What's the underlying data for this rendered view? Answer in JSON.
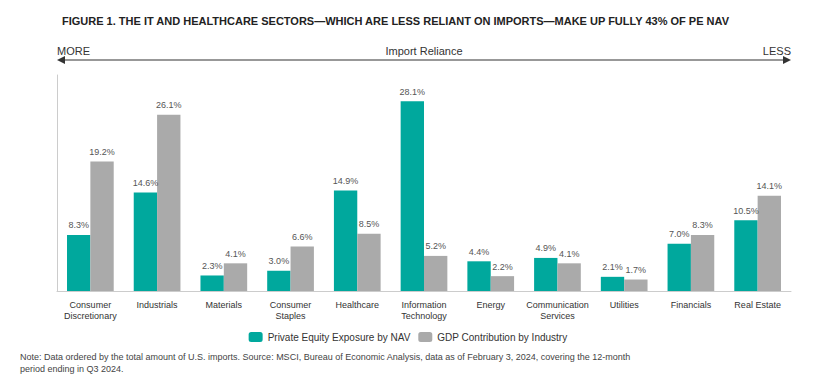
{
  "chart_data": {
    "type": "bar",
    "title": "FIGURE 1. THE IT AND HEALTHCARE SECTORS—WHICH ARE LESS RELIANT ON IMPORTS—MAKE UP FULLY 43% OF PE NAV",
    "categories": [
      "Consumer\nDiscretionary",
      "Industrials",
      "Materials",
      "Consumer\nStaples",
      "Healthcare",
      "Information\nTechnology",
      "Energy",
      "Communication\nServices",
      "Utilities",
      "Financials",
      "Real Estate"
    ],
    "series": [
      {
        "name": "Private Equity Exposure by NAV",
        "color": "#00A89D",
        "values": [
          8.3,
          14.6,
          2.3,
          3.0,
          14.9,
          28.1,
          4.4,
          4.9,
          2.1,
          7.0,
          10.5
        ],
        "value_labels": [
          "8.3%",
          "14.6%",
          "2.3%",
          "3.0%",
          "14.9%",
          "28.1%",
          "4.4%",
          "4.9%",
          "2.1%",
          "7.0%",
          "10.5%"
        ]
      },
      {
        "name": "GDP Contribution by Industry",
        "color": "#AAAAAA",
        "values": [
          19.2,
          26.1,
          4.1,
          6.6,
          8.5,
          5.2,
          2.2,
          4.1,
          1.7,
          8.3,
          14.1
        ],
        "value_labels": [
          "19.2%",
          "26.1%",
          "4.1%",
          "6.6%",
          "8.5%",
          "5.2%",
          "2.2%",
          "4.1%",
          "1.7%",
          "8.3%",
          "14.1%"
        ]
      }
    ],
    "ylim": [
      0,
      32
    ],
    "tick_labels": "x",
    "grid": false,
    "data_labels": true,
    "legend": "bottom",
    "annotation": "Import Reliance",
    "arrow_labels": [
      "MORE",
      "LESS"
    ],
    "note": "Note: Data ordered by the total amount of U.S. imports. Source: MSCI, Bureau of Economic Analysis, data as of February 3, 2024, covering the 12-month\nperiod ending in Q3 2024."
  }
}
